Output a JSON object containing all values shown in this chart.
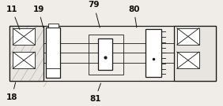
{
  "fig_bg": "#f0ede8",
  "body_bg": "#f0ede8",
  "outline_color": "#1a1a1a",
  "lw": 0.9,
  "thin_lw": 0.6,
  "label_fontsize": 7.5,
  "labels": {
    "11": [
      0.025,
      0.93,
      0.09,
      0.73
    ],
    "19": [
      0.145,
      0.93,
      0.195,
      0.75
    ],
    "79": [
      0.395,
      0.97,
      0.45,
      0.75
    ],
    "80": [
      0.575,
      0.93,
      0.615,
      0.75
    ],
    "18": [
      0.025,
      0.06,
      0.07,
      0.25
    ],
    "81": [
      0.4,
      0.04,
      0.455,
      0.24
    ]
  }
}
